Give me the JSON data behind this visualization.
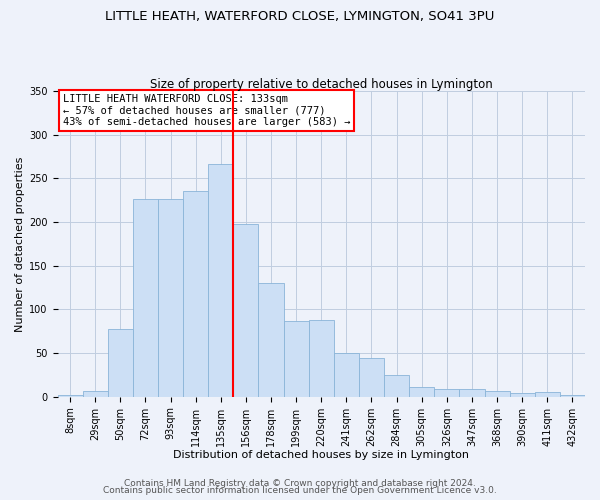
{
  "title": "LITTLE HEATH, WATERFORD CLOSE, LYMINGTON, SO41 3PU",
  "subtitle": "Size of property relative to detached houses in Lymington",
  "xlabel": "Distribution of detached houses by size in Lymington",
  "ylabel": "Number of detached properties",
  "bin_labels": [
    "8sqm",
    "29sqm",
    "50sqm",
    "72sqm",
    "93sqm",
    "114sqm",
    "135sqm",
    "156sqm",
    "178sqm",
    "199sqm",
    "220sqm",
    "241sqm",
    "262sqm",
    "284sqm",
    "305sqm",
    "326sqm",
    "347sqm",
    "368sqm",
    "390sqm",
    "411sqm",
    "432sqm"
  ],
  "bar_values": [
    2,
    6,
    77,
    226,
    226,
    235,
    267,
    198,
    130,
    87,
    88,
    50,
    44,
    25,
    11,
    9,
    9,
    7,
    4,
    5,
    2
  ],
  "bar_color": "#ccdff5",
  "bar_edge_color": "#8ab4d8",
  "vline_x_index": 6,
  "vline_color": "red",
  "annotation_title": "LITTLE HEATH WATERFORD CLOSE: 133sqm",
  "annotation_line1": "← 57% of detached houses are smaller (777)",
  "annotation_line2": "43% of semi-detached houses are larger (583) →",
  "annotation_box_color": "white",
  "annotation_box_edge_color": "red",
  "ylim": [
    0,
    350
  ],
  "yticks": [
    0,
    50,
    100,
    150,
    200,
    250,
    300,
    350
  ],
  "footer1": "Contains HM Land Registry data © Crown copyright and database right 2024.",
  "footer2": "Contains public sector information licensed under the Open Government Licence v3.0.",
  "bg_color": "#eef2fa",
  "plot_bg_color": "#eef2fa",
  "grid_color": "#c0cde0",
  "title_fontsize": 9.5,
  "subtitle_fontsize": 8.5,
  "axis_label_fontsize": 8,
  "tick_fontsize": 7,
  "annotation_fontsize": 7.5,
  "footer_fontsize": 6.5
}
